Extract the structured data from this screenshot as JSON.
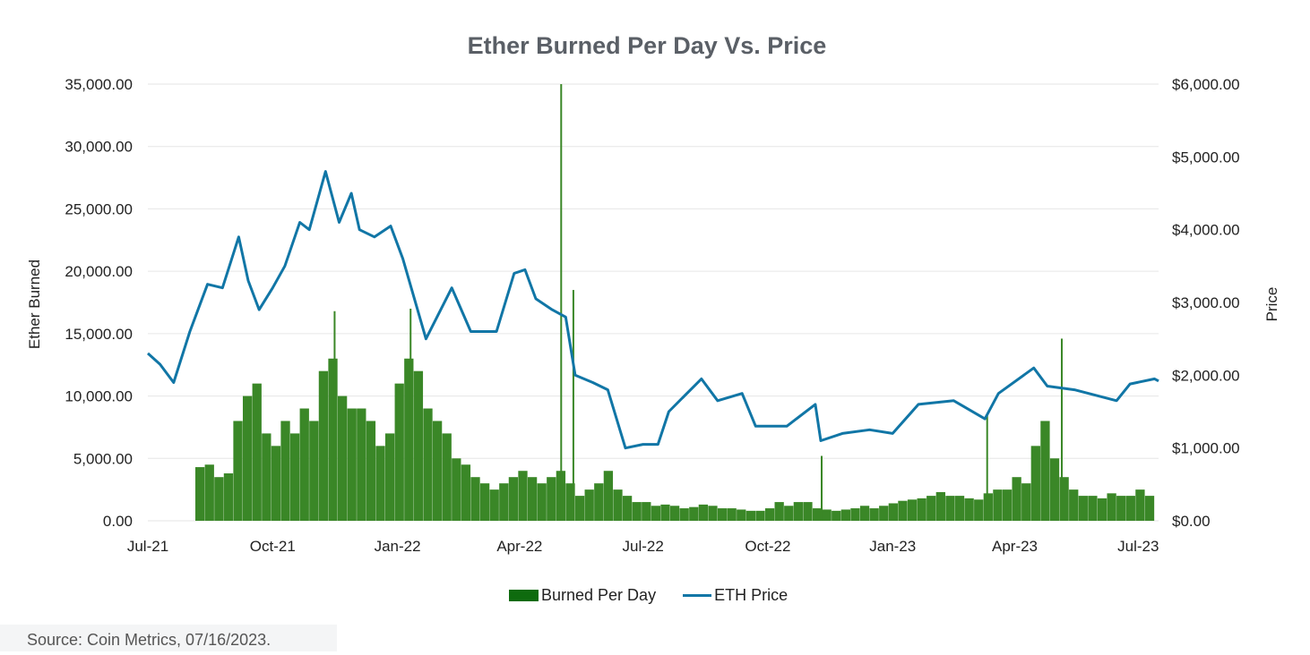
{
  "chart_data": {
    "type": "bar+line",
    "title": "Ether Burned Per Day Vs. Price",
    "ylabel": "Ether Burned",
    "y2label": "Price",
    "ylim": [
      0,
      35000
    ],
    "y2lim": [
      0,
      6000
    ],
    "xlim": [
      "2021-07-01",
      "2023-07-16"
    ],
    "yticks": [
      "0.00",
      "5,000.00",
      "10,000.00",
      "15,000.00",
      "20,000.00",
      "25,000.00",
      "30,000.00",
      "35,000.00"
    ],
    "y2ticks": [
      "$0.00",
      "$1,000.00",
      "$2,000.00",
      "$3,000.00",
      "$4,000.00",
      "$5,000.00",
      "$6,000.00"
    ],
    "xticks": [
      {
        "label": "Jul-21",
        "date": "2021-07-01"
      },
      {
        "label": "Oct-21",
        "date": "2021-10-01"
      },
      {
        "label": "Jan-22",
        "date": "2022-01-01"
      },
      {
        "label": "Apr-22",
        "date": "2022-04-01"
      },
      {
        "label": "Jul-22",
        "date": "2022-07-01"
      },
      {
        "label": "Oct-22",
        "date": "2022-10-01"
      },
      {
        "label": "Jan-23",
        "date": "2023-01-01"
      },
      {
        "label": "Apr-23",
        "date": "2023-04-01"
      },
      {
        "label": "Jul-23",
        "date": "2023-07-01"
      }
    ],
    "grid": true,
    "legend": "bottom",
    "legend_entries": [
      "Burned Per Day",
      "ETH Price"
    ],
    "colors": {
      "burn": "#3a8727",
      "price": "#1176a6",
      "legend_burn": "#0e6b0e"
    },
    "burn_weekly": {
      "start": "2021-08-05",
      "values": [
        4300,
        4500,
        3500,
        3800,
        8000,
        10000,
        11000,
        7000,
        6000,
        8000,
        7000,
        9000,
        8000,
        12000,
        13000,
        10000,
        9000,
        9000,
        8000,
        6000,
        7000,
        11000,
        13000,
        12000,
        9000,
        8000,
        7000,
        5000,
        4500,
        3500,
        3000,
        2500,
        3000,
        3500,
        4000,
        3500,
        3000,
        3500,
        4000,
        3000,
        2000,
        2500,
        3000,
        4000,
        2500,
        2000,
        1500,
        1500,
        1200,
        1300,
        1200,
        1000,
        1100,
        1300,
        1200,
        1000,
        1000,
        900,
        800,
        800,
        1000,
        1500,
        1200,
        1500,
        1500,
        1000,
        900,
        800,
        900,
        1000,
        1200,
        1000,
        1200,
        1400,
        1600,
        1700,
        1800,
        2000,
        2300,
        2000,
        2000,
        1800,
        1700,
        2200,
        2500,
        2500,
        3500,
        3000,
        6000,
        8000,
        5000,
        3500,
        2500,
        2000,
        2000,
        1800,
        2200,
        2000,
        2000,
        2500,
        2000
      ]
    },
    "burn_spikes": [
      {
        "date": "2021-11-15",
        "value": 16800
      },
      {
        "date": "2022-01-10",
        "value": 17000
      },
      {
        "date": "2022-05-01",
        "value": 35000
      },
      {
        "date": "2022-05-10",
        "value": 18500
      },
      {
        "date": "2022-11-09",
        "value": 5200
      },
      {
        "date": "2023-03-11",
        "value": 8500
      },
      {
        "date": "2023-05-05",
        "value": 14600
      }
    ],
    "price": [
      [
        "2021-07-01",
        2300
      ],
      [
        "2021-07-10",
        2150
      ],
      [
        "2021-07-20",
        1900
      ],
      [
        "2021-08-01",
        2600
      ],
      [
        "2021-08-14",
        3250
      ],
      [
        "2021-08-25",
        3200
      ],
      [
        "2021-09-06",
        3900
      ],
      [
        "2021-09-13",
        3300
      ],
      [
        "2021-09-21",
        2900
      ],
      [
        "2021-10-01",
        3200
      ],
      [
        "2021-10-10",
        3500
      ],
      [
        "2021-10-21",
        4100
      ],
      [
        "2021-10-28",
        4000
      ],
      [
        "2021-11-09",
        4800
      ],
      [
        "2021-11-19",
        4100
      ],
      [
        "2021-11-28",
        4500
      ],
      [
        "2021-12-04",
        4000
      ],
      [
        "2021-12-15",
        3900
      ],
      [
        "2021-12-27",
        4050
      ],
      [
        "2022-01-05",
        3600
      ],
      [
        "2022-01-22",
        2500
      ],
      [
        "2022-02-10",
        3200
      ],
      [
        "2022-02-24",
        2600
      ],
      [
        "2022-03-15",
        2600
      ],
      [
        "2022-03-28",
        3400
      ],
      [
        "2022-04-05",
        3450
      ],
      [
        "2022-04-13",
        3050
      ],
      [
        "2022-04-25",
        2900
      ],
      [
        "2022-05-05",
        2800
      ],
      [
        "2022-05-12",
        2000
      ],
      [
        "2022-05-25",
        1900
      ],
      [
        "2022-06-05",
        1800
      ],
      [
        "2022-06-18",
        1000
      ],
      [
        "2022-07-01",
        1050
      ],
      [
        "2022-07-12",
        1050
      ],
      [
        "2022-07-20",
        1500
      ],
      [
        "2022-08-13",
        1950
      ],
      [
        "2022-08-25",
        1650
      ],
      [
        "2022-09-12",
        1750
      ],
      [
        "2022-09-22",
        1300
      ],
      [
        "2022-10-15",
        1300
      ],
      [
        "2022-11-05",
        1600
      ],
      [
        "2022-11-09",
        1100
      ],
      [
        "2022-11-25",
        1200
      ],
      [
        "2022-12-15",
        1250
      ],
      [
        "2023-01-01",
        1200
      ],
      [
        "2023-01-20",
        1600
      ],
      [
        "2023-02-15",
        1650
      ],
      [
        "2023-03-10",
        1400
      ],
      [
        "2023-03-20",
        1750
      ],
      [
        "2023-04-15",
        2100
      ],
      [
        "2023-04-25",
        1850
      ],
      [
        "2023-05-15",
        1800
      ],
      [
        "2023-06-15",
        1650
      ],
      [
        "2023-06-25",
        1880
      ],
      [
        "2023-07-13",
        1950
      ],
      [
        "2023-07-16",
        1920
      ]
    ]
  },
  "source": "Source: Coin Metrics, 07/16/2023."
}
